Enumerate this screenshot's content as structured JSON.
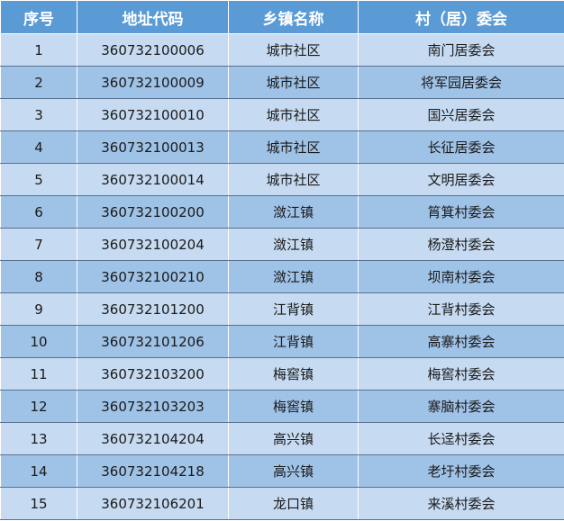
{
  "table": {
    "headers": [
      "序号",
      "地址代码",
      "乡镇名称",
      "村（居）委会"
    ],
    "rows": [
      [
        "1",
        "360732100006",
        "城市社区",
        "南门居委会"
      ],
      [
        "2",
        "360732100009",
        "城市社区",
        "将军园居委会"
      ],
      [
        "3",
        "360732100010",
        "城市社区",
        "国兴居委会"
      ],
      [
        "4",
        "360732100013",
        "城市社区",
        "长征居委会"
      ],
      [
        "5",
        "360732100014",
        "城市社区",
        "文明居委会"
      ],
      [
        "6",
        "360732100200",
        "潋江镇",
        "筲箕村委会"
      ],
      [
        "7",
        "360732100204",
        "潋江镇",
        "杨澄村委会"
      ],
      [
        "8",
        "360732100210",
        "潋江镇",
        "坝南村委会"
      ],
      [
        "9",
        "360732101200",
        "江背镇",
        "江背村委会"
      ],
      [
        "10",
        "360732101206",
        "江背镇",
        "高寨村委会"
      ],
      [
        "11",
        "360732103200",
        "梅窖镇",
        "梅窖村委会"
      ],
      [
        "12",
        "360732103203",
        "梅窖镇",
        "寨脑村委会"
      ],
      [
        "13",
        "360732104204",
        "高兴镇",
        "长迳村委会"
      ],
      [
        "14",
        "360732104218",
        "高兴镇",
        "老圩村委会"
      ],
      [
        "15",
        "360732106201",
        "龙口镇",
        "来溪村委会"
      ]
    ]
  },
  "colors": {
    "header": "#5b9bd5",
    "row_light": "#c6daf1",
    "row_dark": "#9fc2e7"
  }
}
